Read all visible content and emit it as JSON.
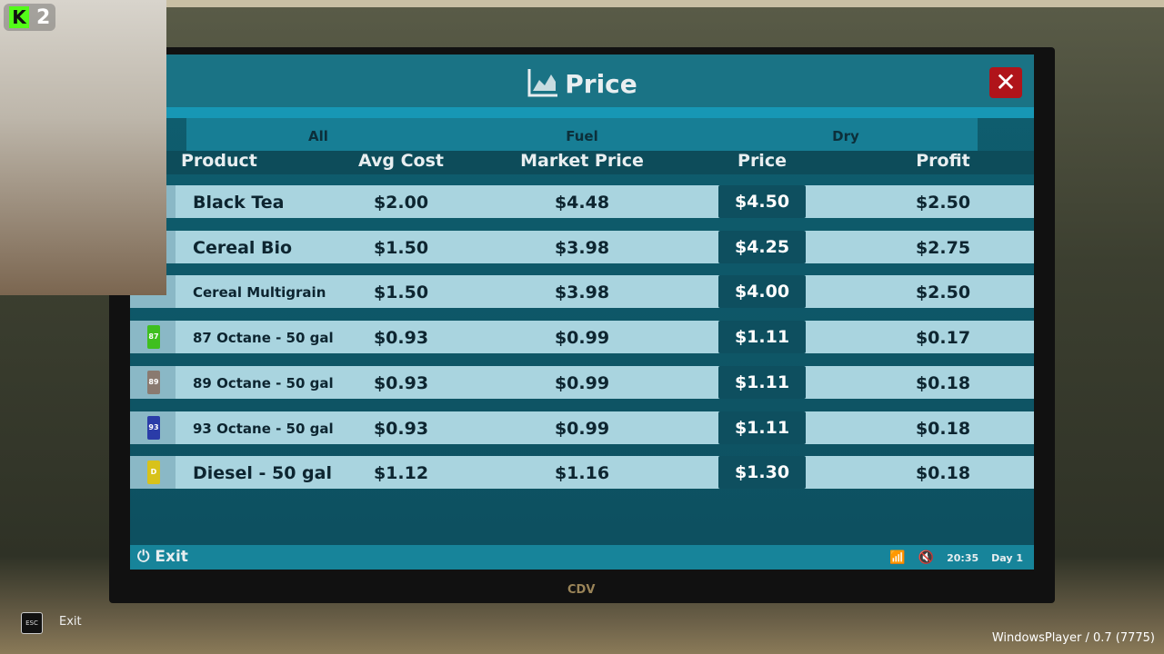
{
  "window": {
    "title": "Price",
    "close_icon": "close-x-icon"
  },
  "tabs": [
    {
      "label": "All"
    },
    {
      "label": "Fuel"
    },
    {
      "label": "Dry"
    }
  ],
  "columns": [
    "Product",
    "Avg Cost",
    "Market Price",
    "Price",
    "Profit"
  ],
  "rows": [
    {
      "product": "Black Tea",
      "avg_cost": "$2.00",
      "market_price": "$4.48",
      "price": "$4.50",
      "profit": "$2.50"
    },
    {
      "product": "Cereal Bio",
      "avg_cost": "$1.50",
      "market_price": "$3.98",
      "price": "$4.25",
      "profit": "$2.75"
    },
    {
      "product": "Cereal Multigrain",
      "avg_cost": "$1.50",
      "market_price": "$3.98",
      "price": "$4.00",
      "profit": "$2.50"
    },
    {
      "product": "87 Octane  - 50 gal",
      "avg_cost": "$0.93",
      "market_price": "$0.99",
      "price": "$1.11",
      "profit": "$0.17",
      "can_color": "#3fbf1f",
      "can_label": "87"
    },
    {
      "product": "89 Octane  - 50 gal",
      "avg_cost": "$0.93",
      "market_price": "$0.99",
      "price": "$1.11",
      "profit": "$0.18",
      "can_color": "#8a7a70",
      "can_label": "89"
    },
    {
      "product": "93 Octane  - 50 gal",
      "avg_cost": "$0.93",
      "market_price": "$0.99",
      "price": "$1.11",
      "profit": "$0.18",
      "can_color": "#2a3ca8",
      "can_label": "93"
    },
    {
      "product": "Diesel - 50 gal",
      "avg_cost": "$1.12",
      "market_price": "$1.16",
      "price": "$1.30",
      "profit": "$0.18",
      "can_color": "#d8c21a",
      "can_label": "D"
    }
  ],
  "footer": {
    "exit_label": "Exit",
    "time": "20:35",
    "day": "Day 1"
  },
  "monitor_brand": "CDV",
  "overlay": {
    "kick_count": "2",
    "esc_key": "ESC",
    "esc_label": "Exit",
    "version": "WindowsPlayer / 0.7 (7775)"
  }
}
